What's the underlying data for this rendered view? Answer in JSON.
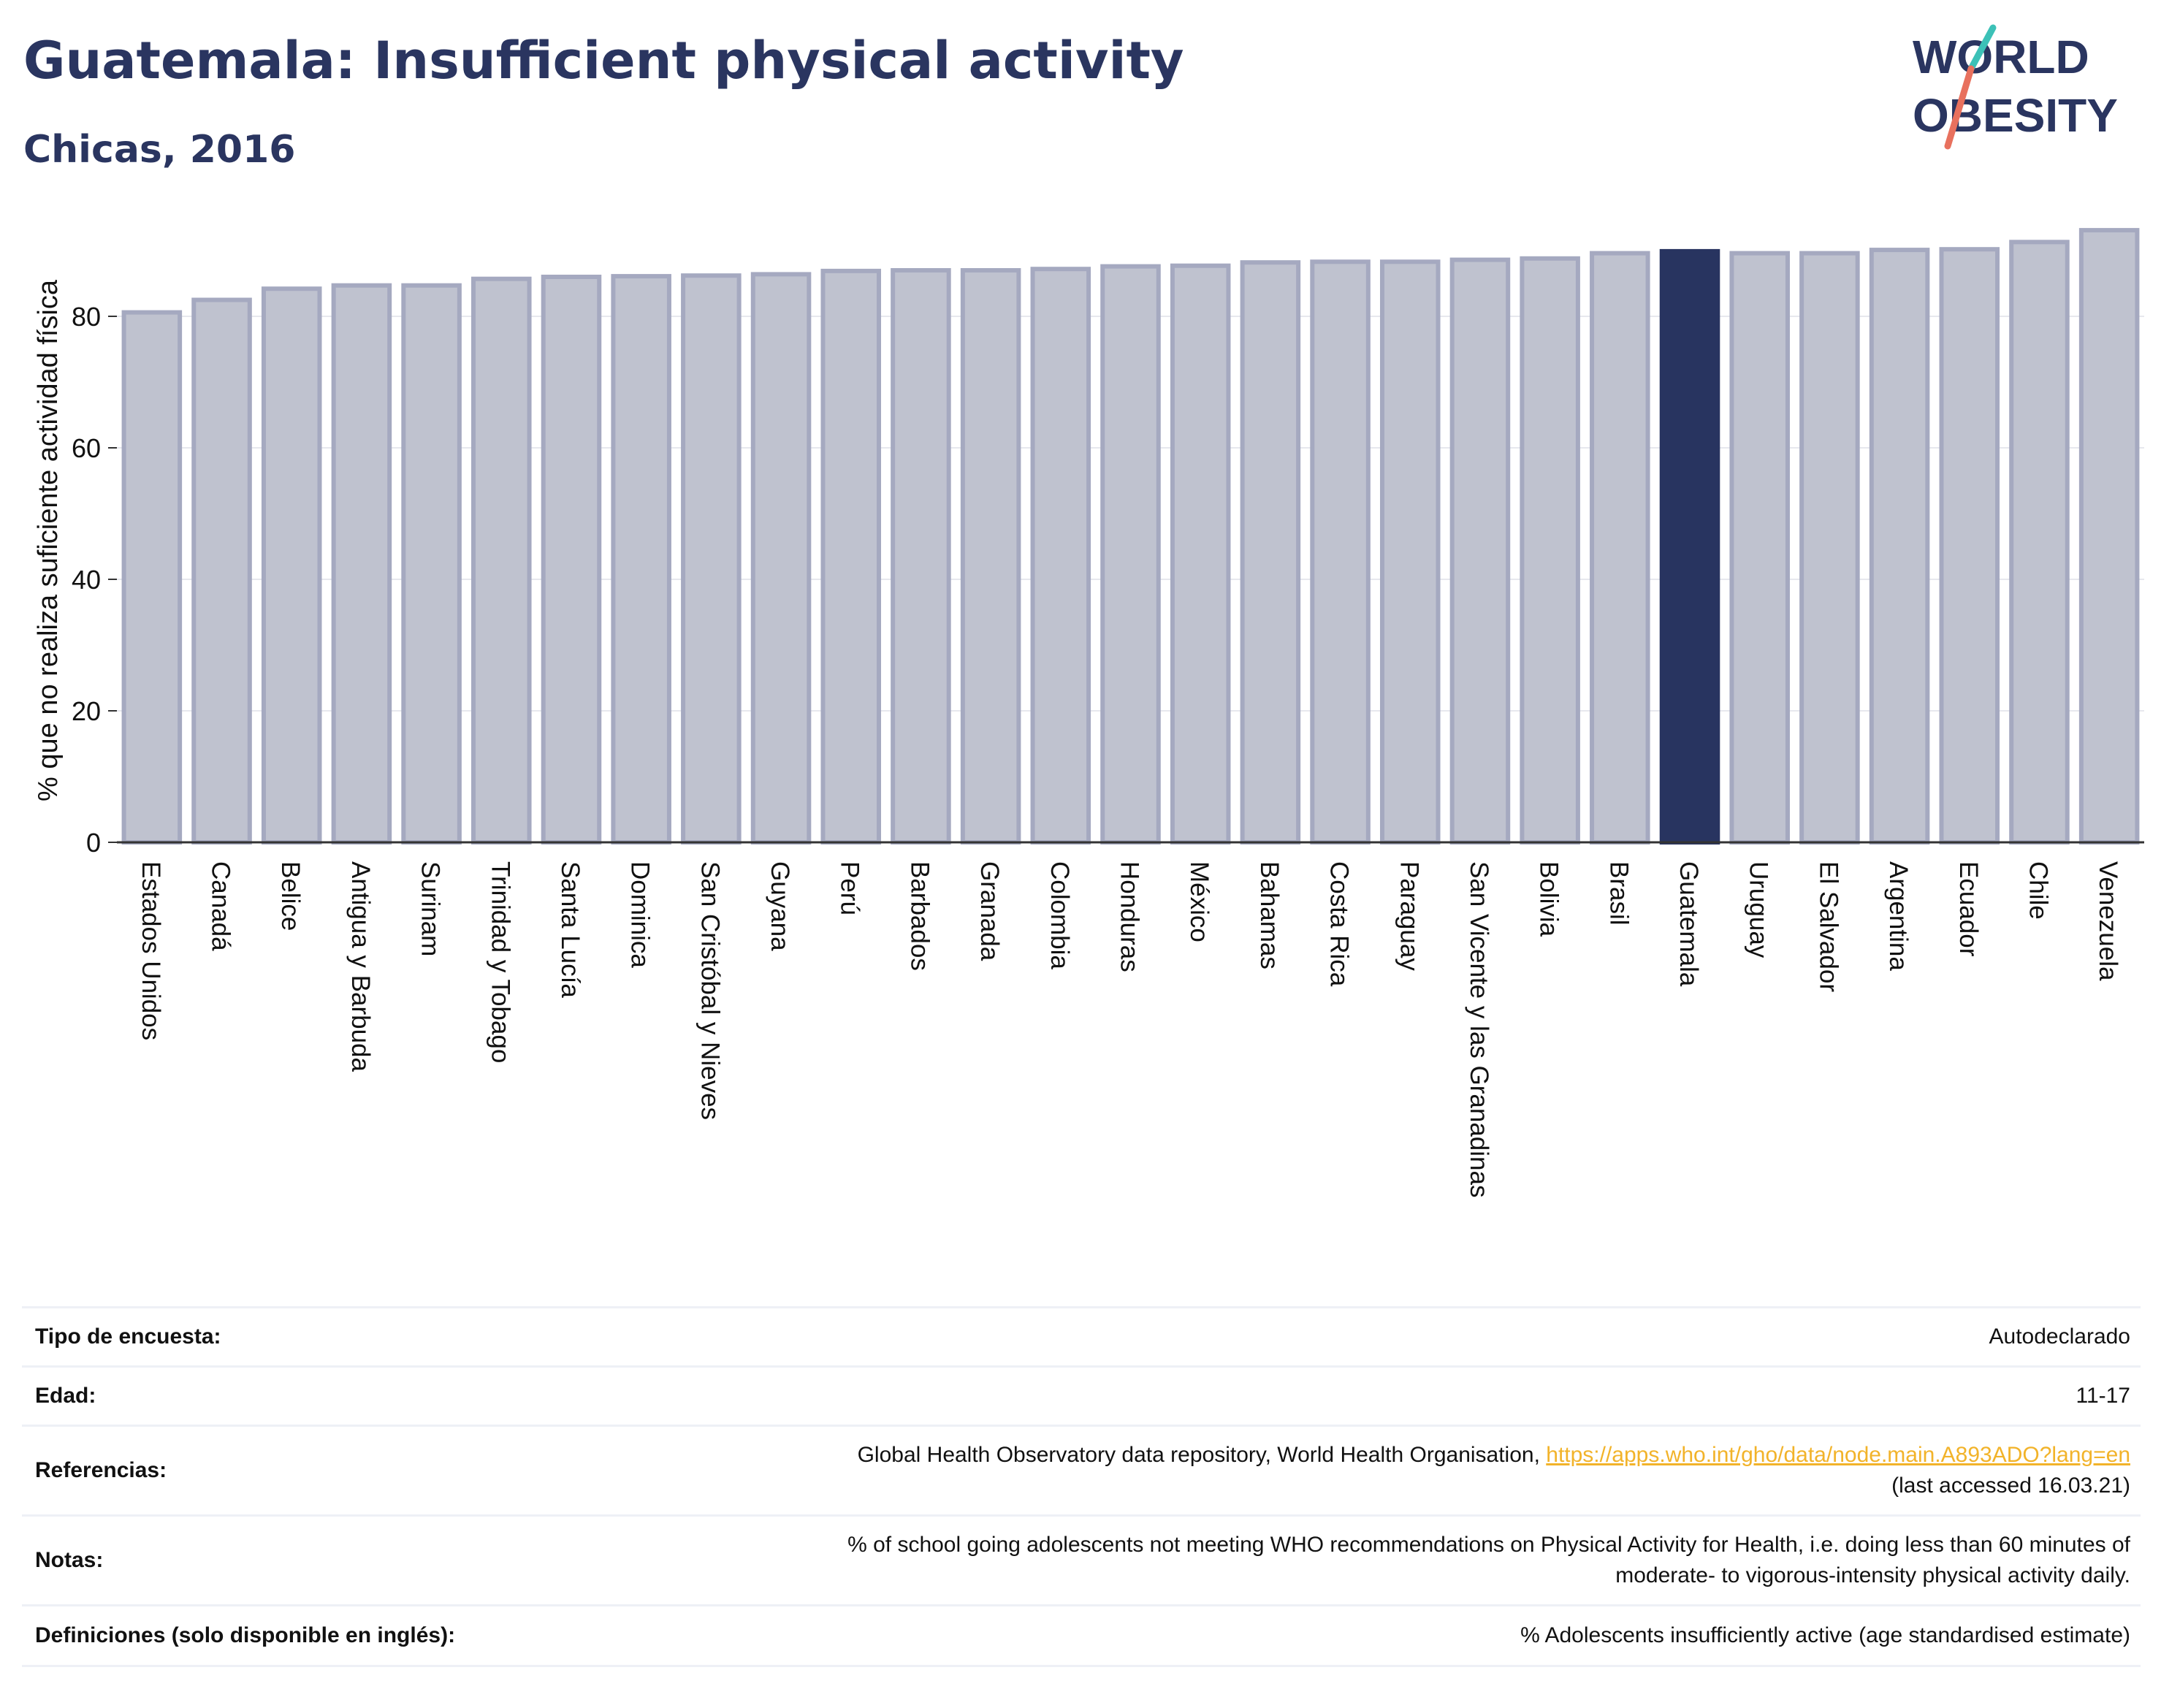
{
  "header": {
    "title": "Guatemala: Insufficient physical activity",
    "subtitle": "Chicas, 2016"
  },
  "logo": {
    "line1": "WORLD",
    "line2": "OBESITY",
    "text_color": "#2a3560",
    "slash_colors": [
      "#3cc1b7",
      "#e8715e"
    ]
  },
  "colors": {
    "bar_default": "#bfc2cf",
    "bar_outline": "#a5a9c0",
    "bar_highlight": "#283460",
    "gridline": "#e7e8ee",
    "axis": "#333333",
    "link": "#f2b32a"
  },
  "chart_data": {
    "type": "bar",
    "ylabel": "% que no realiza suficiente actividad física",
    "ylim": [
      0,
      95
    ],
    "yticks": [
      0,
      20,
      40,
      60,
      80
    ],
    "grid": true,
    "highlight": "Guatemala",
    "categories": [
      "Estados Unidos",
      "Canadá",
      "Belice",
      "Antigua y Barbuda",
      "Surinam",
      "Trinidad y Tobago",
      "Santa Lucía",
      "Dominica",
      "San Cristóbal y Nieves",
      "Guyana",
      "Perú",
      "Barbados",
      "Granada",
      "Colombia",
      "Honduras",
      "México",
      "Bahamas",
      "Costa Rica",
      "Paraguay",
      "San Vicente y las Granadinas",
      "Bolivia",
      "Brasil",
      "Guatemala",
      "Uruguay",
      "El Salvador",
      "Argentina",
      "Ecuador",
      "Chile",
      "Venezuela"
    ],
    "values": [
      80.6,
      82.5,
      84.2,
      84.7,
      84.7,
      85.7,
      86.0,
      86.1,
      86.2,
      86.4,
      86.9,
      87.0,
      87.0,
      87.2,
      87.6,
      87.7,
      88.2,
      88.3,
      88.3,
      88.6,
      88.8,
      89.6,
      89.9,
      89.6,
      89.6,
      90.1,
      90.2,
      91.3,
      93.1
    ]
  },
  "info": {
    "rows": [
      {
        "key": "Tipo de encuesta:",
        "value": "Autodeclarado"
      },
      {
        "key": "Edad:",
        "value": "11-17"
      },
      {
        "key": "Referencias:",
        "value_prefix": "Global Health Observatory data repository, World Health Organisation, ",
        "link": "https://apps.who.int/gho/data/node.main.A893ADO?lang=en",
        "value_suffix": "(last accessed 16.03.21)"
      },
      {
        "key": "Notas:",
        "value_line1": "% of school going adolescents not meeting WHO recommendations on Physical Activity for Health, i.e. doing less than 60 minutes of",
        "value_line2": "moderate- to vigorous-intensity physical activity daily."
      },
      {
        "key": "Definiciones (solo disponible en inglés):",
        "value": "% Adolescents insufficiently active (age standardised estimate)"
      }
    ]
  }
}
